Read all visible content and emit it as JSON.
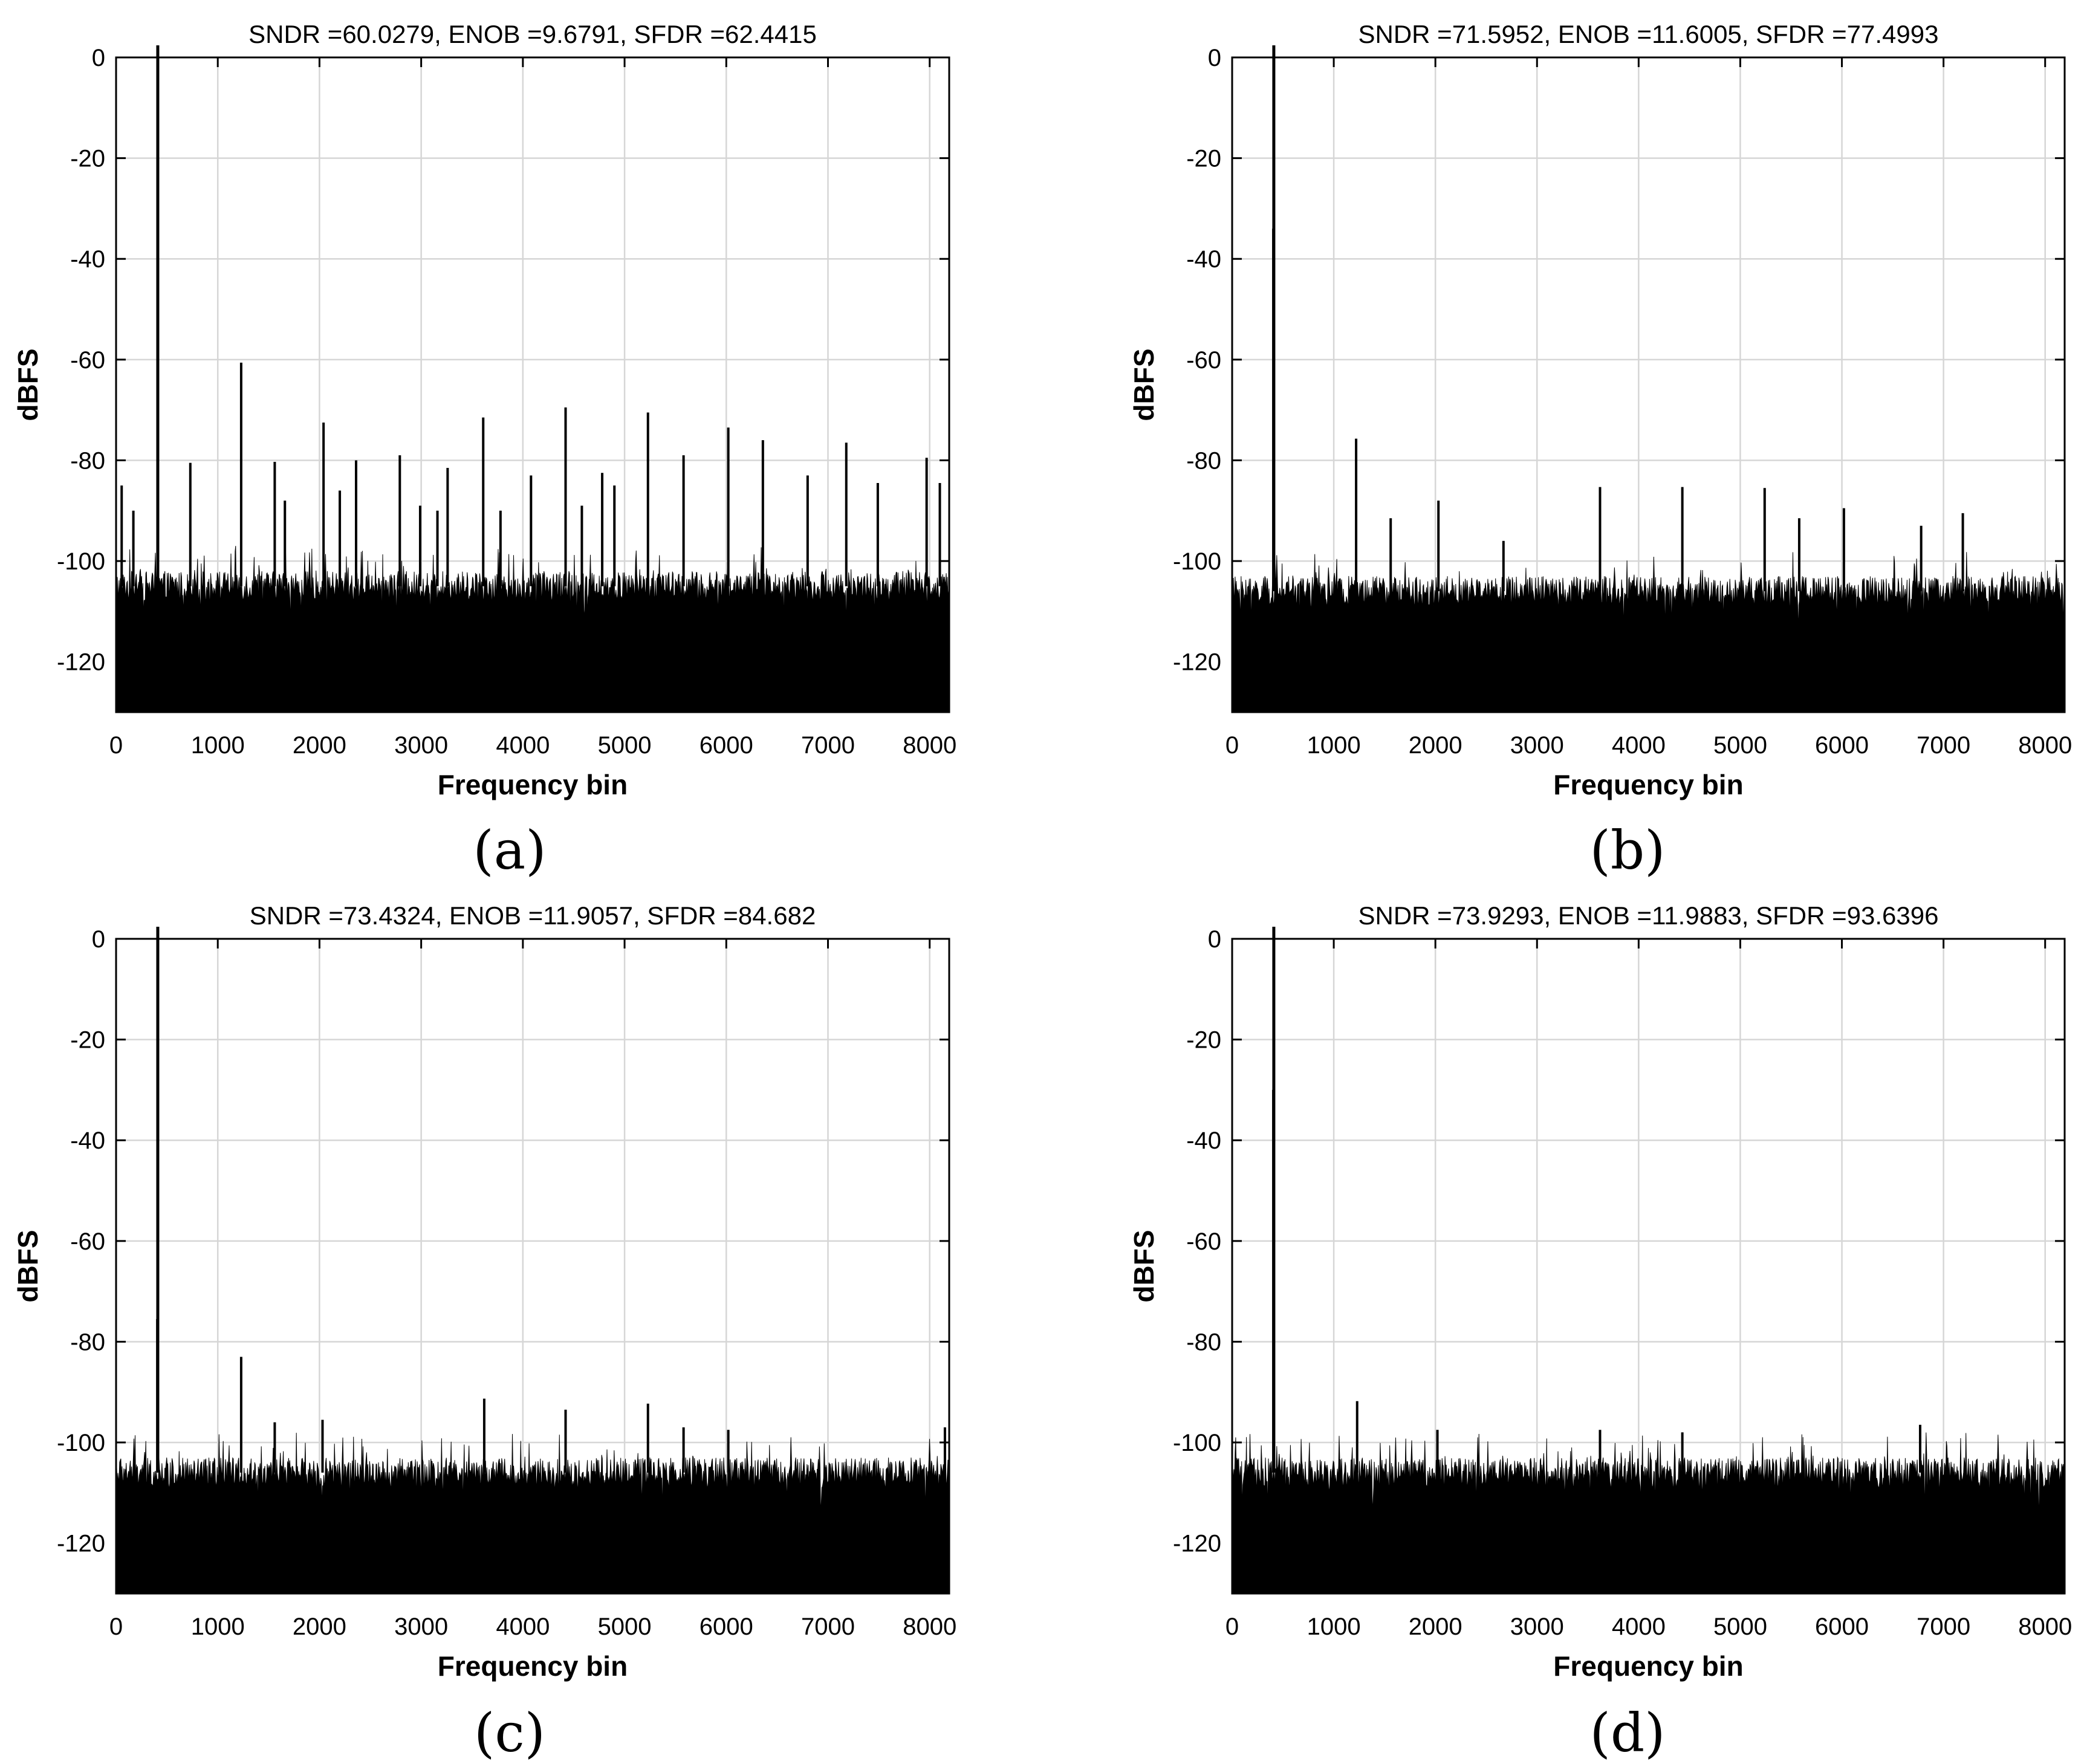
{
  "colors": {
    "spectrum": "#000000",
    "grid": "#d6d6d6",
    "axis": "#000000",
    "background": "#ffffff"
  },
  "chart_data": [
    {
      "panel": "(a)",
      "type": "line",
      "title": "SNDR =60.0279, ENOB =9.6791, SFDR =62.4415",
      "xlabel": "Frequency bin",
      "ylabel": "dBFS",
      "xlim": [
        0,
        8192
      ],
      "ylim": [
        -130,
        0
      ],
      "xticks": [
        0,
        1000,
        2000,
        3000,
        4000,
        5000,
        6000,
        7000,
        8000
      ],
      "yticks": [
        0,
        -20,
        -40,
        -60,
        -80,
        -100,
        -120
      ],
      "grid": true,
      "noise_floor_dbfs": -105,
      "fundamental": {
        "bin": 410,
        "dbfs": 0
      },
      "spurs": [
        {
          "bin": 55,
          "dbfs": -85
        },
        {
          "bin": 170,
          "dbfs": -90
        },
        {
          "bin": 730,
          "dbfs": -80.5
        },
        {
          "bin": 1230,
          "dbfs": -60.6
        },
        {
          "bin": 1560,
          "dbfs": -80.3
        },
        {
          "bin": 1660,
          "dbfs": -88
        },
        {
          "bin": 2040,
          "dbfs": -72.5
        },
        {
          "bin": 2200,
          "dbfs": -86
        },
        {
          "bin": 2360,
          "dbfs": -80
        },
        {
          "bin": 2790,
          "dbfs": -79
        },
        {
          "bin": 2990,
          "dbfs": -89
        },
        {
          "bin": 3160,
          "dbfs": -90
        },
        {
          "bin": 3260,
          "dbfs": -81.5
        },
        {
          "bin": 3610,
          "dbfs": -71.5
        },
        {
          "bin": 3780,
          "dbfs": -90
        },
        {
          "bin": 4080,
          "dbfs": -83
        },
        {
          "bin": 4420,
          "dbfs": -69.5
        },
        {
          "bin": 4580,
          "dbfs": -89
        },
        {
          "bin": 4780,
          "dbfs": -82.5
        },
        {
          "bin": 4900,
          "dbfs": -85
        },
        {
          "bin": 5230,
          "dbfs": -70.5
        },
        {
          "bin": 5580,
          "dbfs": -79
        },
        {
          "bin": 6020,
          "dbfs": -73.5
        },
        {
          "bin": 6360,
          "dbfs": -76
        },
        {
          "bin": 6800,
          "dbfs": -83
        },
        {
          "bin": 7180,
          "dbfs": -76.5
        },
        {
          "bin": 7490,
          "dbfs": -84.5
        },
        {
          "bin": 7970,
          "dbfs": -79.5
        },
        {
          "bin": 8100,
          "dbfs": -84.5
        }
      ]
    },
    {
      "panel": "(b)",
      "type": "line",
      "title": "SNDR =71.5952, ENOB =11.6005, SFDR =77.4993",
      "xlabel": "Frequency bin",
      "ylabel": "dBFS",
      "xlim": [
        0,
        8192
      ],
      "ylim": [
        -130,
        0
      ],
      "xticks": [
        0,
        1000,
        2000,
        3000,
        4000,
        5000,
        6000,
        7000,
        8000
      ],
      "yticks": [
        0,
        -20,
        -40,
        -60,
        -80,
        -100,
        -120
      ],
      "grid": true,
      "noise_floor_dbfs": -106,
      "fundamental": {
        "bin": 410,
        "dbfs": 0
      },
      "spurs": [
        {
          "bin": 405,
          "dbfs": -34
        },
        {
          "bin": 1220,
          "dbfs": -75.7
        },
        {
          "bin": 1560,
          "dbfs": -91.5
        },
        {
          "bin": 2030,
          "dbfs": -88
        },
        {
          "bin": 2670,
          "dbfs": -96
        },
        {
          "bin": 3620,
          "dbfs": -85.3
        },
        {
          "bin": 4430,
          "dbfs": -85.3
        },
        {
          "bin": 5240,
          "dbfs": -85.5
        },
        {
          "bin": 5580,
          "dbfs": -91.5
        },
        {
          "bin": 6020,
          "dbfs": -89.5
        },
        {
          "bin": 6780,
          "dbfs": -93
        },
        {
          "bin": 7190,
          "dbfs": -90.5
        }
      ]
    },
    {
      "panel": "(c)",
      "type": "line",
      "title": "SNDR =73.4324, ENOB =11.9057, SFDR =84.682",
      "xlabel": "Frequency bin",
      "ylabel": "dBFS",
      "xlim": [
        0,
        8192
      ],
      "ylim": [
        -130,
        0
      ],
      "xticks": [
        0,
        1000,
        2000,
        3000,
        4000,
        5000,
        6000,
        7000,
        8000
      ],
      "yticks": [
        0,
        -20,
        -40,
        -60,
        -80,
        -100,
        -120
      ],
      "grid": true,
      "noise_floor_dbfs": -106,
      "fundamental": {
        "bin": 410,
        "dbfs": 0
      },
      "spurs": [
        {
          "bin": 405,
          "dbfs": -75.5
        },
        {
          "bin": 1230,
          "dbfs": -83
        },
        {
          "bin": 1560,
          "dbfs": -96
        },
        {
          "bin": 2030,
          "dbfs": -95.5
        },
        {
          "bin": 3620,
          "dbfs": -91.3
        },
        {
          "bin": 4420,
          "dbfs": -93.5
        },
        {
          "bin": 5230,
          "dbfs": -92.3
        },
        {
          "bin": 5580,
          "dbfs": -97
        },
        {
          "bin": 6020,
          "dbfs": -97.5
        },
        {
          "bin": 8150,
          "dbfs": -97
        }
      ]
    },
    {
      "panel": "(d)",
      "type": "line",
      "title": "SNDR =73.9293, ENOB =11.9883, SFDR =93.6396",
      "xlabel": "Frequency bin",
      "ylabel": "dBFS",
      "xlim": [
        0,
        8192
      ],
      "ylim": [
        -130,
        0
      ],
      "xticks": [
        0,
        1000,
        2000,
        3000,
        4000,
        5000,
        6000,
        7000,
        8000
      ],
      "yticks": [
        0,
        -20,
        -40,
        -60,
        -80,
        -100,
        -120
      ],
      "grid": true,
      "noise_floor_dbfs": -106,
      "fundamental": {
        "bin": 410,
        "dbfs": 0
      },
      "spurs": [
        {
          "bin": 405,
          "dbfs": -30
        },
        {
          "bin": 1230,
          "dbfs": -91.8
        },
        {
          "bin": 2020,
          "dbfs": -97.5
        },
        {
          "bin": 3620,
          "dbfs": -97.5
        },
        {
          "bin": 4430,
          "dbfs": -98
        },
        {
          "bin": 6770,
          "dbfs": -96.5
        }
      ]
    }
  ]
}
